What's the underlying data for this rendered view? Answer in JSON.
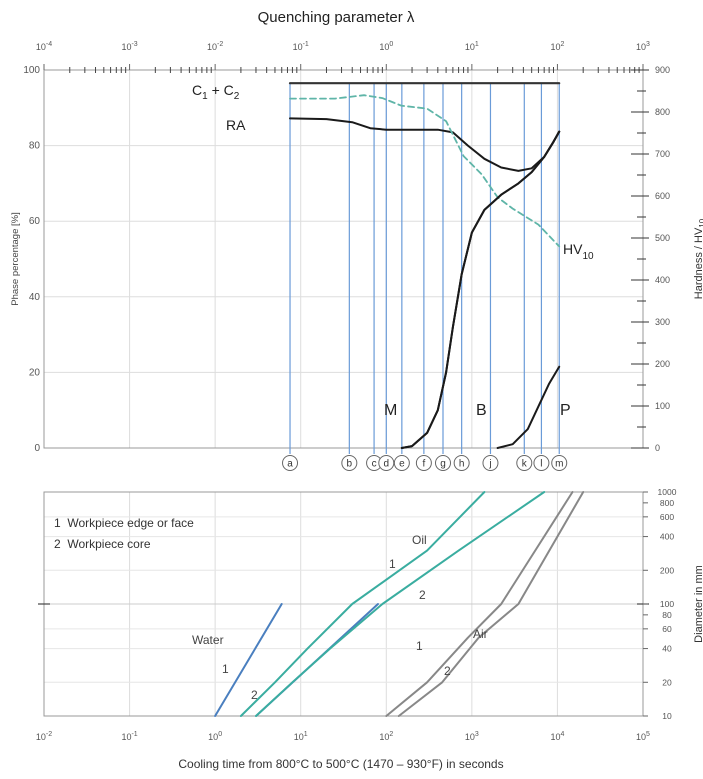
{
  "top_chart": {
    "title": "Quenching parameter λ",
    "ylabel_left": "Phase percentage [%]",
    "ylabel_right_main": "Hardness / HV",
    "ylabel_right_sub": "10",
    "ylabel_right_text": "Hardness / HV10",
    "phase_labels": {
      "c1c2_c1": "C",
      "c1c2_1": "1",
      "c1c2_plus": " + C",
      "c1c2_2": "2",
      "c1c2_text": "C1 + C2",
      "ra": "RA",
      "m": "M",
      "b": "B",
      "p": "P",
      "hv_main": "HV",
      "hv_sub": "10",
      "hv_text": "HV10"
    }
  },
  "bottom_chart": {
    "xlabel": "Cooling time from 800°C to 500°C (1470 – 930°F) in seconds",
    "ylabel_right": "Diameter in mm",
    "legend": [
      "1  Workpiece edge or face",
      "2  Workpiece core"
    ],
    "labels": {
      "water": "Water",
      "oil": "Oil",
      "air": "Air",
      "one": "1",
      "two": "2"
    }
  },
  "chart_data": [
    {
      "type": "line",
      "title": "Quenching parameter λ",
      "xscale": "log",
      "xlim": [
        0.0001,
        1000
      ],
      "ylim": [
        0,
        100
      ],
      "y2lim": [
        0,
        900
      ],
      "ylabel": "Phase percentage [%]",
      "y2label": "Hardness / HV10",
      "x_ticks": [
        "10-4",
        "10-3",
        "10-2",
        "10-1",
        "100",
        "101",
        "102",
        "103"
      ],
      "y_ticks": [
        0,
        20,
        40,
        60,
        80,
        100
      ],
      "y2_ticks": [
        0,
        100,
        200,
        300,
        400,
        500,
        600,
        700,
        800,
        900
      ],
      "grid": true,
      "cooling_curves": [
        {
          "label": "a",
          "x": 0.075
        },
        {
          "label": "b",
          "x": 0.37
        },
        {
          "label": "c",
          "x": 0.72
        },
        {
          "label": "d",
          "x": 1.0
        },
        {
          "label": "e",
          "x": 1.52
        },
        {
          "label": "f",
          "x": 2.75
        },
        {
          "label": "g",
          "x": 4.6
        },
        {
          "label": "h",
          "x": 7.6
        },
        {
          "label": "j",
          "x": 16.5
        },
        {
          "label": "k",
          "x": 41
        },
        {
          "label": "l",
          "x": 65
        },
        {
          "label": "m",
          "x": 105
        }
      ],
      "series": [
        {
          "name": "C1 + C2",
          "axis": "left",
          "points": [
            [
              0.075,
              96.5
            ],
            [
              105,
              96.5
            ]
          ]
        },
        {
          "name": "RA",
          "axis": "left",
          "points": [
            [
              0.075,
              87.2
            ],
            [
              0.2,
              87.0
            ],
            [
              0.4,
              86.2
            ],
            [
              0.65,
              84.6
            ],
            [
              1.0,
              84.2
            ],
            [
              2.0,
              84.2
            ],
            [
              4.0,
              84.2
            ],
            [
              6.0,
              83.5
            ],
            [
              9.0,
              80.0
            ],
            [
              14.0,
              76.5
            ],
            [
              22.0,
              74.2
            ],
            [
              35.0,
              73.3
            ],
            [
              50.0,
              74.0
            ],
            [
              70.0,
              77.0
            ],
            [
              90.0,
              81.0
            ],
            [
              105,
              83.7
            ]
          ]
        },
        {
          "name": "HV10",
          "axis": "right",
          "points": [
            [
              0.075,
              832
            ],
            [
              0.25,
              832
            ],
            [
              0.55,
              840
            ],
            [
              0.9,
              833
            ],
            [
              1.5,
              815
            ],
            [
              3.0,
              808
            ],
            [
              5.0,
              778
            ],
            [
              8.0,
              695
            ],
            [
              13.0,
              652
            ],
            [
              20.0,
              597
            ],
            [
              30.0,
              570
            ],
            [
              60.0,
              532
            ],
            [
              105,
              480
            ]
          ]
        },
        {
          "name": "M",
          "axis": "left",
          "points": [
            [
              1.52,
              0
            ],
            [
              2.0,
              0.5
            ],
            [
              3.0,
              4.0
            ],
            [
              4.0,
              10.0
            ],
            [
              5.0,
              20.0
            ],
            [
              6.0,
              32.0
            ],
            [
              7.6,
              46.0
            ],
            [
              10.0,
              57.0
            ],
            [
              14.0,
              63.0
            ],
            [
              22.0,
              67.0
            ],
            [
              35.0,
              70.0
            ],
            [
              50.0,
              73.0
            ],
            [
              70.0,
              77.0
            ],
            [
              90.0,
              81.0
            ],
            [
              105,
              83.7
            ]
          ]
        },
        {
          "name": "B",
          "axis": "left",
          "points": [
            [
              1.52,
              0
            ],
            [
              2.0,
              0.5
            ],
            [
              3.0,
              4.0
            ],
            [
              4.0,
              10.0
            ],
            [
              5.0,
              20.0
            ],
            [
              6.0,
              32.0
            ],
            [
              7.6,
              46.0
            ],
            [
              10.0,
              57.0
            ],
            [
              14.0,
              63.0
            ],
            [
              22.0,
              67.0
            ],
            [
              35.0,
              70.0
            ],
            [
              50.0,
              73.0
            ],
            [
              70.0,
              77.0
            ],
            [
              90.0,
              81.0
            ],
            [
              105,
              83.7
            ]
          ]
        },
        {
          "name": "P",
          "axis": "left",
          "points": [
            [
              20.0,
              0
            ],
            [
              30.0,
              1.0
            ],
            [
              45.0,
              5.0
            ],
            [
              60.0,
              11.0
            ],
            [
              80.0,
              17.0
            ],
            [
              105,
              21.5
            ]
          ]
        }
      ]
    },
    {
      "type": "line",
      "xscale": "log",
      "yscale": "log",
      "xlim": [
        0.01,
        100000
      ],
      "ylim": [
        10,
        1000
      ],
      "xlabel": "Cooling time from 800°C to 500°C (1470 – 930°F) in seconds",
      "ylabel": "Diameter in mm",
      "x_ticks": [
        "10-2",
        "10-1",
        "100",
        "101",
        "102",
        "103",
        "104",
        "105"
      ],
      "y_ticks": [
        10,
        20,
        40,
        60,
        80,
        100,
        200,
        400,
        600,
        800,
        1000
      ],
      "grid": true,
      "series": [
        {
          "name": "Water 1",
          "color": "#4a7fbf",
          "points": [
            [
              1.0,
              10
            ],
            [
              6.0,
              100
            ]
          ]
        },
        {
          "name": "Water 2",
          "color": "#4a7fbf",
          "points": [
            [
              3.0,
              10
            ],
            [
              80.0,
              100
            ]
          ]
        },
        {
          "name": "Oil 1",
          "color": "#3aada0",
          "points": [
            [
              2.0,
              10
            ],
            [
              5.0,
              20
            ],
            [
              12.0,
              40
            ],
            [
              40.0,
              100
            ],
            [
              300.0,
              300
            ],
            [
              1400.0,
              1000
            ]
          ]
        },
        {
          "name": "Oil 2",
          "color": "#3aada0",
          "points": [
            [
              3.0,
              10
            ],
            [
              8.0,
              20
            ],
            [
              22.0,
              40
            ],
            [
              90.0,
              100
            ],
            [
              700.0,
              300
            ],
            [
              7000.0,
              1000
            ]
          ]
        },
        {
          "name": "Air 1",
          "color": "#888888",
          "points": [
            [
              100.0,
              10
            ],
            [
              300.0,
              20
            ],
            [
              900.0,
              50
            ],
            [
              2200.0,
              100
            ],
            [
              15000.0,
              1000
            ]
          ]
        },
        {
          "name": "Air 2",
          "color": "#888888",
          "points": [
            [
              140.0,
              10
            ],
            [
              450.0,
              20
            ],
            [
              1200.0,
              50
            ],
            [
              3500.0,
              100
            ],
            [
              20000.0,
              1000
            ]
          ]
        }
      ]
    }
  ]
}
